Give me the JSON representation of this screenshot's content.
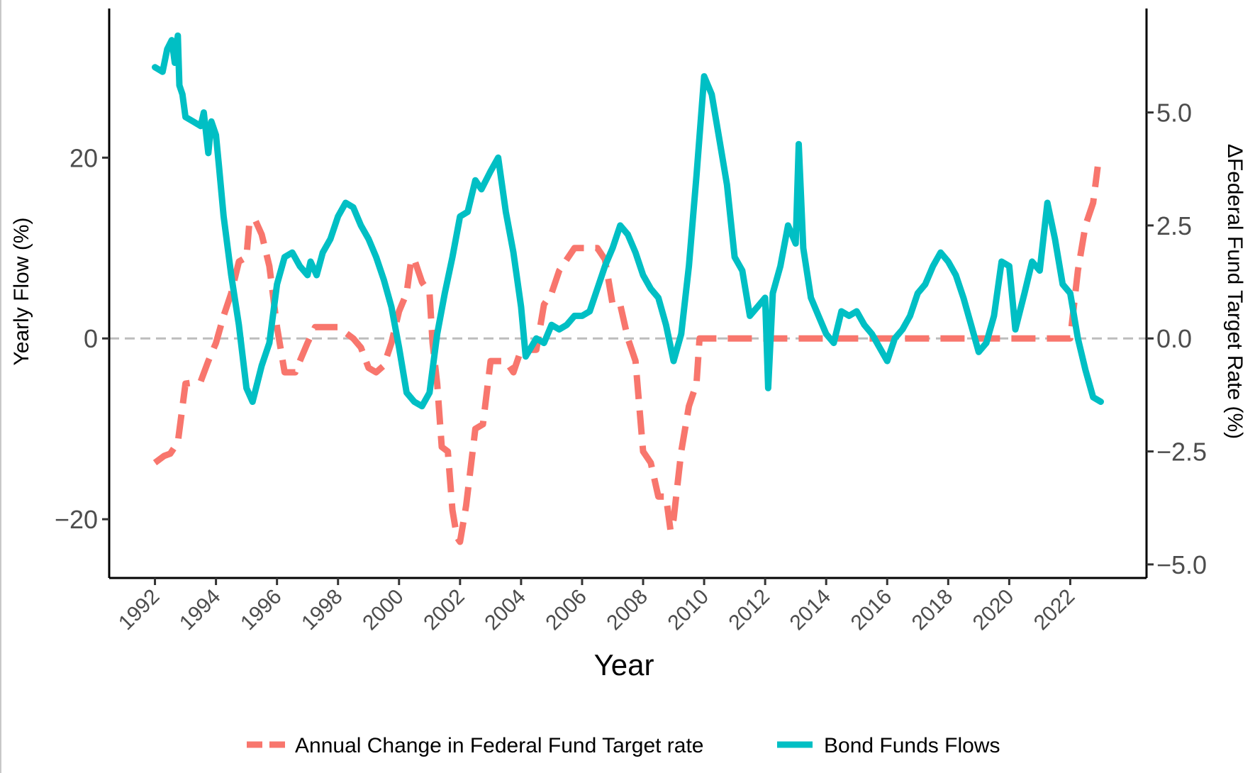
{
  "chart_data": {
    "type": "line",
    "title": "",
    "xlabel": "Year",
    "ylabel_left": "Yearly Flow (%)",
    "ylabel_right": "ΔFederal Fund Target Rate (%)",
    "xlim": [
      1990.5,
      2024.5
    ],
    "ylim_left": [
      -26.5,
      36.5
    ],
    "ylim_right": [
      -5.3,
      7.3
    ],
    "x_ticks": [
      1992,
      1994,
      1996,
      1998,
      2000,
      2002,
      2004,
      2006,
      2008,
      2010,
      2012,
      2014,
      2016,
      2018,
      2020,
      2022
    ],
    "x_tick_labels": [
      "1992",
      "1994",
      "1996",
      "1998",
      "2000",
      "2002",
      "2004",
      "2006",
      "2008",
      "2010",
      "2012",
      "2014",
      "2016",
      "2018",
      "2020",
      "2022"
    ],
    "y_left_ticks": [
      -20,
      0,
      20
    ],
    "y_left_tick_labels": [
      "−20",
      "0",
      "20"
    ],
    "y_right_ticks": [
      -5.0,
      -2.5,
      0.0,
      2.5,
      5.0
    ],
    "y_right_tick_labels": [
      "−5.0",
      "−2.5",
      "0.0",
      "2.5",
      "5.0"
    ],
    "reference_line_y_left": 0,
    "grid": false,
    "legend_position": "bottom",
    "series": [
      {
        "name": "Annual Change in Federal Fund Target rate",
        "axis": "right",
        "style": "dashed",
        "color": "#F8766D",
        "points": [
          [
            1992.0,
            -2.75
          ],
          [
            1992.3,
            -2.6
          ],
          [
            1992.5,
            -2.55
          ],
          [
            1992.75,
            -2.3
          ],
          [
            1993.0,
            -1.0
          ],
          [
            1993.5,
            -0.95
          ],
          [
            1993.75,
            -0.5
          ],
          [
            1994.0,
            -0.1
          ],
          [
            1994.25,
            0.5
          ],
          [
            1994.5,
            1.0
          ],
          [
            1994.75,
            1.7
          ],
          [
            1995.0,
            1.8
          ],
          [
            1995.1,
            2.6
          ],
          [
            1995.3,
            2.6
          ],
          [
            1995.5,
            2.3
          ],
          [
            1995.75,
            1.6
          ],
          [
            1996.0,
            0.25
          ],
          [
            1996.25,
            -0.75
          ],
          [
            1996.6,
            -0.75
          ],
          [
            1996.75,
            -0.5
          ],
          [
            1997.0,
            -0.1
          ],
          [
            1997.25,
            0.25
          ],
          [
            1997.5,
            0.25
          ],
          [
            1998.0,
            0.25
          ],
          [
            1998.5,
            0.0
          ],
          [
            1998.75,
            -0.2
          ],
          [
            1999.0,
            -0.65
          ],
          [
            1999.25,
            -0.75
          ],
          [
            1999.5,
            -0.6
          ],
          [
            1999.75,
            -0.1
          ],
          [
            2000.0,
            0.6
          ],
          [
            2000.25,
            1.0
          ],
          [
            2000.4,
            1.75
          ],
          [
            2000.5,
            1.75
          ],
          [
            2000.75,
            1.25
          ],
          [
            2001.0,
            1.0
          ],
          [
            2001.1,
            -0.1
          ],
          [
            2001.25,
            -1.0
          ],
          [
            2001.4,
            -2.4
          ],
          [
            2001.6,
            -2.5
          ],
          [
            2001.75,
            -3.8
          ],
          [
            2001.9,
            -4.4
          ],
          [
            2002.0,
            -4.5
          ],
          [
            2002.2,
            -3.7
          ],
          [
            2002.5,
            -2.0
          ],
          [
            2002.75,
            -1.9
          ],
          [
            2003.0,
            -0.5
          ],
          [
            2003.5,
            -0.5
          ],
          [
            2003.75,
            -0.75
          ],
          [
            2004.0,
            -0.25
          ],
          [
            2004.5,
            -0.25
          ],
          [
            2004.75,
            0.75
          ],
          [
            2005.0,
            1.0
          ],
          [
            2005.25,
            1.5
          ],
          [
            2005.5,
            1.75
          ],
          [
            2005.75,
            2.0
          ],
          [
            2006.0,
            2.0
          ],
          [
            2006.5,
            2.0
          ],
          [
            2006.75,
            1.75
          ],
          [
            2007.0,
            0.75
          ],
          [
            2007.25,
            0.75
          ],
          [
            2007.5,
            0.0
          ],
          [
            2007.75,
            -0.5
          ],
          [
            2008.0,
            -2.5
          ],
          [
            2008.25,
            -2.75
          ],
          [
            2008.5,
            -3.5
          ],
          [
            2008.75,
            -3.5
          ],
          [
            2008.9,
            -4.25
          ],
          [
            2009.0,
            -4.0
          ],
          [
            2009.25,
            -2.5
          ],
          [
            2009.5,
            -1.5
          ],
          [
            2009.75,
            -1.0
          ],
          [
            2009.85,
            0.0
          ],
          [
            2010.0,
            0.0
          ],
          [
            2022.0,
            0.0
          ],
          [
            2022.25,
            1.5
          ],
          [
            2022.5,
            2.5
          ],
          [
            2022.75,
            3.0
          ],
          [
            2022.9,
            3.8
          ]
        ]
      },
      {
        "name": "Bond Funds Flows",
        "axis": "left",
        "style": "solid",
        "color": "#00BFC4",
        "points": [
          [
            1992.0,
            30.0
          ],
          [
            1992.25,
            29.5
          ],
          [
            1992.4,
            32.0
          ],
          [
            1992.55,
            33.0
          ],
          [
            1992.65,
            30.5
          ],
          [
            1992.75,
            33.5
          ],
          [
            1992.8,
            28.0
          ],
          [
            1992.9,
            27.0
          ],
          [
            1993.0,
            24.5
          ],
          [
            1993.25,
            24.0
          ],
          [
            1993.5,
            23.5
          ],
          [
            1993.6,
            25.0
          ],
          [
            1993.75,
            20.5
          ],
          [
            1993.85,
            24.0
          ],
          [
            1994.0,
            22.5
          ],
          [
            1994.1,
            19.0
          ],
          [
            1994.25,
            13.5
          ],
          [
            1994.5,
            7.0
          ],
          [
            1994.75,
            1.5
          ],
          [
            1995.0,
            -5.5
          ],
          [
            1995.2,
            -7.0
          ],
          [
            1995.5,
            -3.0
          ],
          [
            1995.75,
            -0.5
          ],
          [
            1996.0,
            6.0
          ],
          [
            1996.25,
            9.0
          ],
          [
            1996.5,
            9.5
          ],
          [
            1996.75,
            8.0
          ],
          [
            1997.0,
            7.0
          ],
          [
            1997.1,
            8.5
          ],
          [
            1997.3,
            7.0
          ],
          [
            1997.5,
            9.5
          ],
          [
            1997.75,
            11.0
          ],
          [
            1998.0,
            13.5
          ],
          [
            1998.25,
            15.0
          ],
          [
            1998.5,
            14.5
          ],
          [
            1998.75,
            12.5
          ],
          [
            1999.0,
            11.0
          ],
          [
            1999.25,
            9.0
          ],
          [
            1999.5,
            6.5
          ],
          [
            1999.75,
            3.5
          ],
          [
            2000.0,
            -1.0
          ],
          [
            2000.25,
            -6.0
          ],
          [
            2000.5,
            -7.0
          ],
          [
            2000.75,
            -7.5
          ],
          [
            2001.0,
            -6.0
          ],
          [
            2001.25,
            0.5
          ],
          [
            2001.5,
            5.0
          ],
          [
            2001.75,
            9.0
          ],
          [
            2002.0,
            13.5
          ],
          [
            2002.25,
            14.0
          ],
          [
            2002.5,
            17.5
          ],
          [
            2002.7,
            16.5
          ],
          [
            2003.0,
            18.5
          ],
          [
            2003.25,
            20.0
          ],
          [
            2003.5,
            14.0
          ],
          [
            2003.75,
            9.5
          ],
          [
            2004.0,
            3.5
          ],
          [
            2004.15,
            -2.0
          ],
          [
            2004.5,
            0.0
          ],
          [
            2004.75,
            -0.5
          ],
          [
            2005.0,
            1.5
          ],
          [
            2005.25,
            1.0
          ],
          [
            2005.5,
            1.5
          ],
          [
            2005.75,
            2.5
          ],
          [
            2006.0,
            2.5
          ],
          [
            2006.25,
            3.0
          ],
          [
            2006.5,
            5.5
          ],
          [
            2006.75,
            8.0
          ],
          [
            2007.0,
            10.0
          ],
          [
            2007.25,
            12.5
          ],
          [
            2007.5,
            11.5
          ],
          [
            2007.75,
            9.5
          ],
          [
            2008.0,
            7.0
          ],
          [
            2008.25,
            5.5
          ],
          [
            2008.5,
            4.5
          ],
          [
            2008.75,
            1.5
          ],
          [
            2009.0,
            -2.5
          ],
          [
            2009.25,
            0.5
          ],
          [
            2009.5,
            8.0
          ],
          [
            2009.75,
            18.0
          ],
          [
            2010.0,
            29.0
          ],
          [
            2010.25,
            27.0
          ],
          [
            2010.5,
            22.0
          ],
          [
            2010.75,
            17.0
          ],
          [
            2011.0,
            9.0
          ],
          [
            2011.25,
            7.5
          ],
          [
            2011.5,
            2.5
          ],
          [
            2011.75,
            3.5
          ],
          [
            2012.0,
            4.5
          ],
          [
            2012.1,
            -5.5
          ],
          [
            2012.25,
            5.0
          ],
          [
            2012.5,
            8.0
          ],
          [
            2012.75,
            12.5
          ],
          [
            2013.0,
            10.5
          ],
          [
            2013.1,
            21.5
          ],
          [
            2013.25,
            10.0
          ],
          [
            2013.5,
            4.5
          ],
          [
            2013.75,
            2.5
          ],
          [
            2014.0,
            0.5
          ],
          [
            2014.25,
            -0.5
          ],
          [
            2014.5,
            3.0
          ],
          [
            2014.75,
            2.5
          ],
          [
            2015.0,
            3.0
          ],
          [
            2015.25,
            1.5
          ],
          [
            2015.5,
            0.5
          ],
          [
            2015.75,
            -1.0
          ],
          [
            2016.0,
            -2.5
          ],
          [
            2016.25,
            0.0
          ],
          [
            2016.5,
            1.0
          ],
          [
            2016.75,
            2.5
          ],
          [
            2017.0,
            5.0
          ],
          [
            2017.25,
            6.0
          ],
          [
            2017.5,
            8.0
          ],
          [
            2017.75,
            9.5
          ],
          [
            2018.0,
            8.5
          ],
          [
            2018.25,
            7.0
          ],
          [
            2018.5,
            4.5
          ],
          [
            2018.75,
            1.5
          ],
          [
            2019.0,
            -1.5
          ],
          [
            2019.25,
            -0.5
          ],
          [
            2019.5,
            2.5
          ],
          [
            2019.75,
            8.5
          ],
          [
            2020.0,
            8.0
          ],
          [
            2020.2,
            1.0
          ],
          [
            2020.5,
            5.0
          ],
          [
            2020.75,
            8.5
          ],
          [
            2021.0,
            7.5
          ],
          [
            2021.25,
            15.0
          ],
          [
            2021.5,
            11.0
          ],
          [
            2021.75,
            6.0
          ],
          [
            2022.0,
            5.0
          ],
          [
            2022.25,
            0.0
          ],
          [
            2022.5,
            -3.5
          ],
          [
            2022.75,
            -6.5
          ],
          [
            2023.0,
            -7.0
          ]
        ]
      }
    ]
  }
}
